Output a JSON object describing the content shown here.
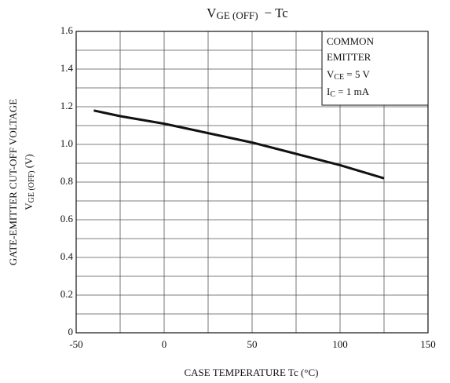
{
  "chart_data": {
    "type": "line",
    "title": {
      "main": "V",
      "sub": "GE (OFF)",
      "rest": "−  Tc"
    },
    "x_label": "CASE TEMPERATURE   Tc   (°C)",
    "y_label": {
      "line1": "GATE-EMITTER CUT-OFF VOLTAGE",
      "main": "V",
      "sub": "GE (OFF)",
      "rest": "   (V)"
    },
    "annotations": {
      "line1": "COMMON",
      "line2": "EMITTER",
      "vce": {
        "main": "V",
        "sub": "CE",
        "rest": " = 5 V"
      },
      "ic": {
        "main": "I",
        "sub": "C",
        "rest": " = 1 mA"
      }
    },
    "x": [
      -40,
      -25,
      0,
      25,
      50,
      75,
      100,
      125
    ],
    "series": [
      {
        "name": "VGE(OFF)",
        "color": "#111111",
        "values": [
          1.18,
          1.15,
          1.11,
          1.06,
          1.01,
          0.95,
          0.89,
          0.82
        ]
      }
    ],
    "xlim": [
      -50,
      150
    ],
    "xticks": [
      -50,
      0,
      50,
      100,
      150
    ],
    "xgrid": [
      -25,
      25,
      75,
      125
    ],
    "ylim": [
      0,
      1.6
    ],
    "yticks": [
      0,
      0.2,
      0.4,
      0.6,
      0.8,
      {
        "value": 1,
        "label": "1.0"
      },
      1.2,
      1.4,
      1.6
    ],
    "ygrid": [
      0.1,
      0.3,
      0.5,
      0.7,
      0.9,
      1.1,
      1.3,
      1.5
    ],
    "grid": true
  }
}
